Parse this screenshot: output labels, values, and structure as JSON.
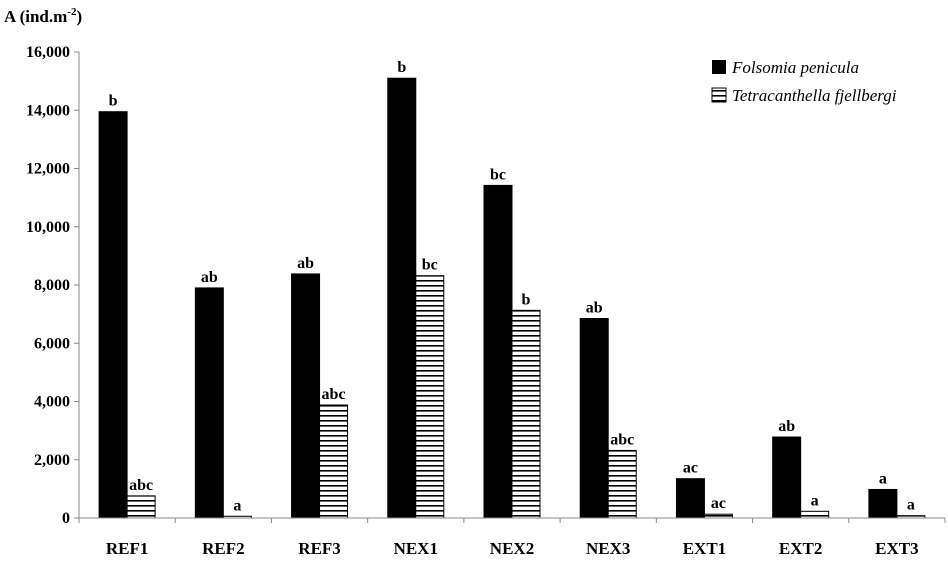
{
  "chart_data": {
    "type": "bar",
    "ylabel": "A (ind.m",
    "ylabel_superscript": "-2",
    "ylabel_suffix": ")",
    "ylim": [
      0,
      16000
    ],
    "yticks": [
      0,
      2000,
      4000,
      6000,
      8000,
      10000,
      12000,
      14000,
      16000
    ],
    "ytick_labels": [
      "0",
      "2,000",
      "4,000",
      "6,000",
      "8,000",
      "10,000",
      "12,000",
      "14,000",
      "16,000"
    ],
    "categories": [
      "REF1",
      "REF2",
      "REF3",
      "NEX1",
      "NEX2",
      "NEX3",
      "EXT1",
      "EXT2",
      "EXT3"
    ],
    "grid": false,
    "legend_position": "top-right",
    "series": [
      {
        "name": "Folsomia penicula",
        "fill": "solid",
        "color": "#000000",
        "values": [
          13950,
          7900,
          8380,
          15100,
          11420,
          6850,
          1350,
          2780,
          980
        ],
        "labels": [
          "b",
          "ab",
          "ab",
          "b",
          "bc",
          "ab",
          "ac",
          "ab",
          "a"
        ]
      },
      {
        "name": "Tetracanthella fjellbergi",
        "fill": "horizontal-stripes",
        "color": "#000000",
        "values": [
          760,
          60,
          3880,
          8320,
          7130,
          2320,
          130,
          230,
          80
        ],
        "labels": [
          "abc",
          "a",
          "abc",
          "bc",
          "b",
          "abc",
          "ac",
          "a",
          "a"
        ]
      }
    ]
  }
}
